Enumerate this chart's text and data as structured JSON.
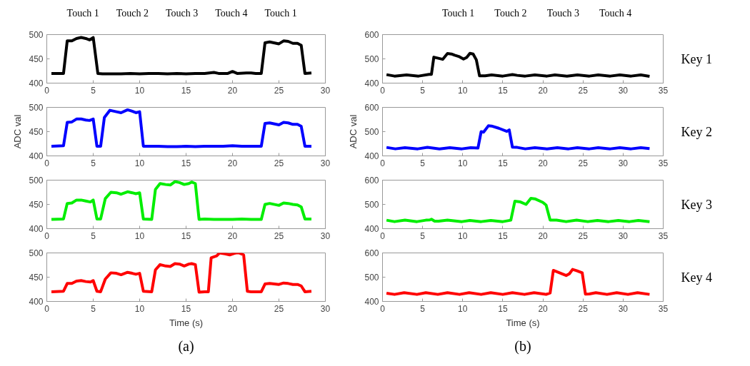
{
  "chart_data": [
    {
      "type": "line",
      "annotations": [
        "Touch 1",
        "Touch 2",
        "Touch 3",
        "Touch 4",
        "Touch 1"
      ],
      "xlim": [
        0,
        30
      ],
      "ylim": [
        400,
        500
      ],
      "xticks": [
        0,
        5,
        10,
        15,
        20,
        25,
        30
      ],
      "yticks": [
        400,
        450,
        500
      ],
      "x": [
        0.5,
        1.8,
        2.2,
        2.7,
        3.2,
        3.7,
        4.2,
        4.6,
        5.0,
        5.5,
        6,
        8,
        9,
        10,
        11,
        12,
        13,
        14,
        15,
        16,
        17,
        18,
        18.5,
        19.5,
        20,
        20.5,
        21.5,
        22,
        22.5,
        23.1,
        23.5,
        24,
        25,
        25.5,
        26,
        26.5,
        27,
        27.4,
        27.8,
        28.5
      ],
      "series": [
        {
          "color": "#000000",
          "values": [
            420,
            420,
            487,
            487,
            492,
            494,
            492,
            489,
            494,
            420,
            419,
            419,
            420,
            419,
            420,
            420,
            419,
            420,
            419,
            420,
            420,
            422,
            420,
            420,
            424,
            420,
            421,
            421,
            420,
            420,
            483,
            485,
            481,
            487,
            486,
            482,
            482,
            478,
            420,
            421
          ]
        }
      ]
    },
    {
      "type": "line",
      "ylabel": "ADC val",
      "xlim": [
        0,
        30
      ],
      "ylim": [
        400,
        500
      ],
      "xticks": [
        0,
        5,
        10,
        15,
        20,
        25,
        30
      ],
      "yticks": [
        400,
        450,
        500
      ],
      "x": [
        0.5,
        1.8,
        2.2,
        2.7,
        3.2,
        3.7,
        4.2,
        4.6,
        5.0,
        5.4,
        5.8,
        6.2,
        6.8,
        7.5,
        8,
        8.7,
        9.2,
        9.6,
        10,
        10.4,
        12,
        13,
        14,
        15,
        16,
        17,
        19,
        20,
        21,
        23.1,
        23.5,
        24,
        25,
        25.5,
        26,
        26.5,
        27,
        27.4,
        27.8,
        28.5
      ],
      "series": [
        {
          "color": "#0000ff",
          "values": [
            420,
            421,
            469,
            470,
            476,
            476,
            474,
            473,
            476,
            420,
            420,
            479,
            494,
            491,
            489,
            495,
            492,
            489,
            491,
            420,
            420,
            419,
            419,
            420,
            419,
            420,
            420,
            421,
            420,
            420,
            467,
            468,
            464,
            469,
            468,
            465,
            465,
            461,
            420,
            420
          ]
        }
      ]
    },
    {
      "type": "line",
      "xlim": [
        0,
        30
      ],
      "ylim": [
        400,
        500
      ],
      "xticks": [
        0,
        5,
        10,
        15,
        20,
        25,
        30
      ],
      "yticks": [
        400,
        450,
        500
      ],
      "x": [
        0.5,
        1.8,
        2.2,
        2.7,
        3.2,
        3.7,
        4.2,
        4.7,
        5.0,
        5.4,
        5.8,
        6.3,
        6.9,
        7.5,
        8,
        8.7,
        9.2,
        9.6,
        10,
        10.4,
        11.3,
        11.7,
        12.2,
        12.8,
        13.3,
        13.8,
        14.3,
        14.8,
        15.3,
        15.6,
        16,
        16.4,
        17,
        18,
        19,
        20,
        21,
        22,
        23.1,
        23.5,
        24,
        25,
        25.5,
        26,
        26.5,
        27,
        27.4,
        27.8,
        28.5
      ],
      "series": [
        {
          "color": "#00ee00",
          "values": [
            419,
            420,
            452,
            453,
            459,
            459,
            457,
            455,
            459,
            420,
            420,
            462,
            475,
            474,
            471,
            476,
            474,
            472,
            474,
            420,
            419,
            481,
            493,
            491,
            490,
            497,
            495,
            491,
            493,
            496,
            493,
            419,
            420,
            419,
            419,
            419,
            420,
            419,
            419,
            450,
            452,
            448,
            453,
            452,
            450,
            449,
            445,
            420,
            420
          ]
        }
      ]
    },
    {
      "type": "line",
      "xlabel": "Time (s)",
      "annotations": [
        "(a)"
      ],
      "xlim": [
        0,
        30
      ],
      "ylim": [
        400,
        500
      ],
      "xticks": [
        0,
        5,
        10,
        15,
        20,
        25,
        30
      ],
      "yticks": [
        400,
        450,
        500
      ],
      "x": [
        0.5,
        1.8,
        2.2,
        2.7,
        3.2,
        3.7,
        4.2,
        4.7,
        5,
        5.4,
        5.8,
        6.3,
        6.9,
        7.5,
        8,
        8.7,
        9.2,
        9.6,
        10,
        10.4,
        11.3,
        11.7,
        12.2,
        12.8,
        13.3,
        13.8,
        14.3,
        14.8,
        15.3,
        15.6,
        16,
        16.4,
        17,
        17.4,
        17.7,
        18.3,
        18.6,
        19.2,
        19.7,
        20.2,
        20.4,
        20.7,
        21.2,
        21.6,
        22,
        23.1,
        23.5,
        24,
        25,
        25.5,
        26,
        26.5,
        27,
        27.4,
        27.8,
        28.5
      ],
      "series": [
        {
          "color": "#ff0000",
          "values": [
            420,
            421,
            437,
            437,
            442,
            443,
            441,
            440,
            443,
            421,
            420,
            446,
            459,
            458,
            455,
            460,
            458,
            456,
            458,
            421,
            420,
            465,
            476,
            473,
            472,
            478,
            477,
            473,
            477,
            478,
            476,
            419,
            420,
            420,
            490,
            494,
            500,
            498,
            496,
            499,
            500,
            500,
            496,
            421,
            420,
            420,
            436,
            437,
            435,
            438,
            437,
            435,
            435,
            432,
            420,
            421
          ]
        }
      ]
    },
    {
      "type": "line",
      "annotations": [
        "Touch 1",
        "Touch 2",
        "Touch 3",
        "Touch 4",
        "Key 1"
      ],
      "xlim": [
        0,
        35
      ],
      "ylim": [
        400,
        600
      ],
      "xticks": [
        0,
        5,
        10,
        15,
        20,
        25,
        30,
        35
      ],
      "yticks": [
        400,
        500,
        600
      ],
      "x": [
        0.5,
        1.5,
        3,
        4.5,
        5.8,
        6.1,
        6.4,
        7.5,
        8.1,
        8.6,
        9,
        9.5,
        10.1,
        10.5,
        10.9,
        11.3,
        11.7,
        12.1,
        12.8,
        13.6,
        15,
        16.2,
        16.8,
        17.8,
        19,
        20.5,
        21.5,
        23,
        24.3,
        25.8,
        26.9,
        28.4,
        29.6,
        31,
        32.2,
        33.3
      ],
      "series": [
        {
          "color": "#000000",
          "values": [
            435,
            429,
            434,
            429,
            436,
            436,
            507,
            498,
            522,
            520,
            515,
            510,
            499,
            506,
            523,
            520,
            496,
            430,
            430,
            434,
            429,
            435,
            432,
            429,
            434,
            429,
            434,
            429,
            434,
            429,
            434,
            429,
            434,
            429,
            434,
            428
          ]
        }
      ]
    },
    {
      "type": "line",
      "ylabel": "ADC val",
      "annotations": [
        "Key 2"
      ],
      "xlim": [
        0,
        35
      ],
      "ylim": [
        400,
        600
      ],
      "xticks": [
        0,
        5,
        10,
        15,
        20,
        25,
        30,
        35
      ],
      "yticks": [
        400,
        500,
        600
      ],
      "x": [
        0.5,
        1.6,
        2.8,
        4.4,
        5.6,
        7.1,
        8.4,
        9.9,
        11,
        11.9,
        12.3,
        12.6,
        13.2,
        13.6,
        14.5,
        15.5,
        15.8,
        16.2,
        16.8,
        17.8,
        19,
        20.5,
        21.8,
        23.2,
        24.3,
        25.8,
        26.9,
        28.4,
        29.6,
        31,
        32.2,
        33.3
      ],
      "series": [
        {
          "color": "#0000ff",
          "values": [
            435,
            429,
            434,
            429,
            435,
            429,
            434,
            429,
            434,
            432,
            500,
            498,
            524,
            523,
            514,
            501,
            507,
            436,
            435,
            429,
            434,
            429,
            434,
            429,
            434,
            429,
            434,
            429,
            434,
            429,
            434,
            430
          ]
        }
      ]
    },
    {
      "type": "line",
      "annotations": [
        "Key 3"
      ],
      "xlim": [
        0,
        35
      ],
      "ylim": [
        400,
        600
      ],
      "xticks": [
        0,
        5,
        10,
        15,
        20,
        25,
        30,
        35
      ],
      "yticks": [
        400,
        500,
        600
      ],
      "x": [
        0.5,
        1.5,
        2.8,
        4.3,
        5.4,
        5.9,
        6.1,
        6.5,
        7,
        8.1,
        9.9,
        10.9,
        12.3,
        13.5,
        15,
        16,
        16.5,
        17.2,
        17.9,
        18.5,
        19,
        20,
        20.4,
        20.9,
        21.7,
        22.9,
        24.2,
        25.6,
        26.8,
        28.2,
        29.4,
        30.8,
        31.9,
        33.3
      ],
      "series": [
        {
          "color": "#00ee00",
          "values": [
            435,
            429,
            435,
            429,
            435,
            436,
            439,
            431,
            431,
            435,
            429,
            434,
            429,
            434,
            429,
            435,
            513,
            510,
            500,
            525,
            523,
            508,
            497,
            435,
            435,
            429,
            435,
            429,
            434,
            429,
            434,
            429,
            434,
            429
          ]
        }
      ]
    },
    {
      "type": "line",
      "xlabel": "Time (s)",
      "annotations": [
        "Key 4",
        "(b)"
      ],
      "xlim": [
        0,
        35
      ],
      "ylim": [
        400,
        600
      ],
      "xticks": [
        0,
        5,
        10,
        15,
        20,
        25,
        30,
        35
      ],
      "yticks": [
        400,
        500,
        600
      ],
      "x": [
        0.5,
        1.5,
        2.7,
        4.3,
        5.4,
        6.9,
        8.1,
        9.6,
        10.8,
        12.3,
        13.5,
        15,
        16.2,
        17.7,
        18.9,
        20.4,
        20.9,
        21.3,
        22.9,
        23.3,
        23.7,
        24.2,
        24.9,
        25.3,
        25.8,
        26.6,
        28,
        29.2,
        30.6,
        31.8,
        33.3
      ],
      "series": [
        {
          "color": "#ff0000",
          "values": [
            434,
            429,
            436,
            429,
            436,
            429,
            436,
            429,
            436,
            429,
            436,
            429,
            436,
            429,
            436,
            429,
            435,
            528,
            507,
            514,
            532,
            527,
            518,
            430,
            431,
            436,
            429,
            436,
            429,
            436,
            429
          ]
        }
      ]
    }
  ]
}
